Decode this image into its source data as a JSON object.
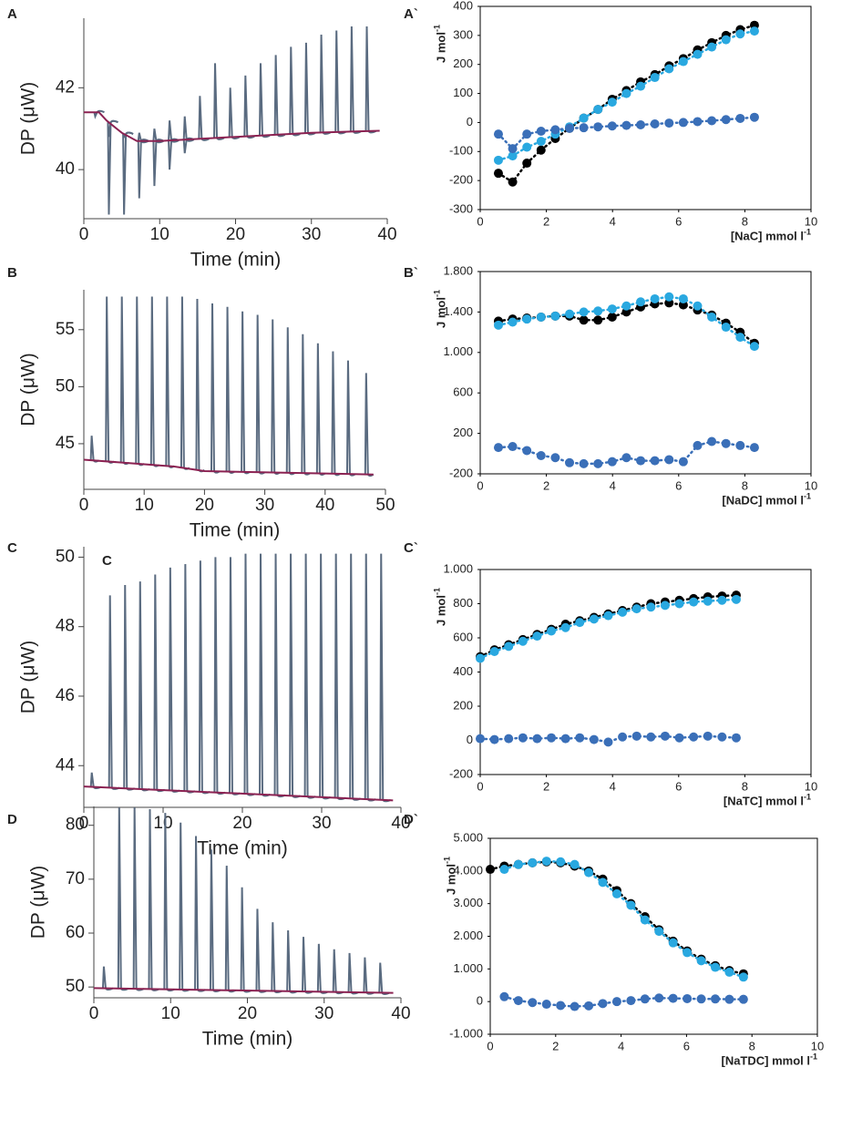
{
  "chart_data": [
    {
      "type": "thermogram",
      "panel": "A",
      "ylabel": "DP (μW)",
      "xlabel": "Time (min)",
      "xlim": [
        0,
        40
      ],
      "xticks": [
        0,
        10,
        20,
        30,
        40
      ],
      "ylim": [
        38.8,
        43.7
      ],
      "yticks": [
        40,
        42
      ],
      "baseline": {
        "color": "#8b2252",
        "x": [
          0,
          2,
          3,
          5,
          7,
          10,
          20,
          30,
          39
        ],
        "values": [
          41.4,
          41.4,
          41.2,
          40.9,
          40.7,
          40.7,
          40.8,
          40.9,
          40.95
        ]
      },
      "peaks": {
        "color": "#5a6b80",
        "x": [
          1.5,
          3.3,
          5.3,
          7.3,
          9.3,
          11.3,
          13.3,
          15.3,
          17.3,
          19.3,
          21.3,
          23.3,
          25.3,
          27.3,
          29.3,
          31.3,
          33.3,
          35.3,
          37.3
        ],
        "values": [
          41.3,
          40.8,
          40.8,
          40.9,
          41.0,
          41.2,
          41.3,
          41.8,
          42.6,
          42.0,
          42.3,
          42.6,
          42.8,
          43.0,
          43.1,
          43.3,
          43.4,
          43.5,
          43.5
        ]
      },
      "troughs": {
        "x": [
          3.3,
          5.3,
          7.3,
          9.3,
          11.3,
          13.3
        ],
        "values": [
          38.9,
          38.9,
          39.3,
          39.6,
          40.0,
          40.4
        ]
      }
    },
    {
      "type": "scatter",
      "panel": "A`",
      "ylabel": "J mol",
      "ylabel_sup": "-1",
      "xlabel": "[NaC] mmol l",
      "xlabel_sup": "-1",
      "xlim": [
        0,
        10
      ],
      "xticks": [
        0,
        2,
        4,
        6,
        8,
        10
      ],
      "ylim": [
        -300,
        400
      ],
      "yticks": [
        -300,
        -200,
        -100,
        0,
        100,
        200,
        300,
        400
      ],
      "x": [
        0.55,
        0.98,
        1.41,
        1.84,
        2.27,
        2.7,
        3.13,
        3.56,
        3.99,
        4.42,
        4.85,
        5.28,
        5.71,
        6.14,
        6.57,
        7.0,
        7.43,
        7.86,
        8.29
      ],
      "series": [
        {
          "color": "#000000",
          "values": [
            -175,
            -205,
            -140,
            -95,
            -55,
            -20,
            15,
            45,
            80,
            110,
            140,
            165,
            195,
            220,
            250,
            275,
            300,
            320,
            335
          ]
        },
        {
          "color": "#29a8e0",
          "values": [
            -130,
            -115,
            -85,
            -65,
            -40,
            -15,
            15,
            45,
            70,
            100,
            125,
            155,
            185,
            210,
            235,
            260,
            285,
            305,
            315
          ]
        },
        {
          "color": "#3a6fb8",
          "values": [
            -40,
            -90,
            -40,
            -30,
            -25,
            -20,
            -18,
            -15,
            -12,
            -10,
            -8,
            -5,
            -2,
            0,
            3,
            6,
            10,
            14,
            18
          ]
        }
      ]
    },
    {
      "type": "thermogram",
      "panel": "B",
      "ylabel": "DP (μW)",
      "xlabel": "Time (min)",
      "xlim": [
        0,
        50
      ],
      "xticks": [
        0,
        10,
        20,
        30,
        40,
        50
      ],
      "ylim": [
        41,
        58.5
      ],
      "yticks": [
        45,
        50,
        55
      ],
      "baseline": {
        "color": "#8b2252",
        "x": [
          0,
          15,
          20,
          48
        ],
        "values": [
          43.6,
          43.0,
          42.6,
          42.3
        ]
      },
      "peaks": {
        "color": "#5a6b80",
        "x": [
          1.3,
          3.8,
          6.3,
          8.8,
          11.3,
          13.8,
          16.3,
          18.8,
          21.3,
          23.8,
          26.3,
          28.8,
          31.3,
          33.8,
          36.3,
          38.8,
          41.3,
          43.8,
          46.8
        ],
        "values": [
          45.7,
          57.9,
          57.9,
          57.9,
          57.9,
          57.9,
          57.9,
          57.7,
          57.3,
          57.0,
          56.6,
          56.3,
          55.9,
          55.2,
          54.6,
          53.8,
          53.1,
          52.3,
          51.2
        ]
      }
    },
    {
      "type": "scatter",
      "panel": "B`",
      "ylabel": "J mol",
      "ylabel_sup": "-1",
      "xlabel": "[NaDC] mmol l",
      "xlabel_sup": "-1",
      "xlim": [
        0,
        10
      ],
      "xticks": [
        0,
        2,
        4,
        6,
        8,
        10
      ],
      "ylim": [
        -200,
        1800
      ],
      "yticks": [
        -200,
        200,
        600,
        {
          "value": 1000,
          "label": "1.000"
        },
        {
          "value": 1400,
          "label": "1.400"
        },
        {
          "value": 1800,
          "label": "1.800"
        }
      ],
      "x": [
        0.55,
        0.98,
        1.41,
        1.84,
        2.27,
        2.7,
        3.13,
        3.56,
        3.99,
        4.42,
        4.85,
        5.28,
        5.71,
        6.14,
        6.57,
        7.0,
        7.43,
        7.86,
        8.29
      ],
      "series": [
        {
          "color": "#000000",
          "values": [
            1310,
            1330,
            1340,
            1350,
            1360,
            1360,
            1320,
            1320,
            1350,
            1400,
            1450,
            1480,
            1490,
            1470,
            1420,
            1370,
            1290,
            1200,
            1090
          ]
        },
        {
          "color": "#29a8e0",
          "values": [
            1270,
            1300,
            1330,
            1350,
            1360,
            1380,
            1400,
            1410,
            1430,
            1460,
            1500,
            1530,
            1550,
            1530,
            1460,
            1350,
            1250,
            1150,
            1060
          ]
        },
        {
          "color": "#3a6fb8",
          "values": [
            60,
            70,
            30,
            -20,
            -40,
            -90,
            -100,
            -100,
            -80,
            -40,
            -70,
            -70,
            -60,
            -80,
            80,
            120,
            100,
            80,
            60
          ]
        }
      ]
    },
    {
      "type": "thermogram",
      "panel": "C",
      "annotation": "C",
      "ylabel": "DP (μW)",
      "xlabel": "Time (min)",
      "xlim": [
        0,
        40
      ],
      "xticks": [
        0,
        10,
        20,
        30,
        40
      ],
      "ylim": [
        42.8,
        50.3
      ],
      "yticks": [
        44,
        46,
        48,
        50
      ],
      "baseline": {
        "color": "#8b2252",
        "x": [
          0,
          39
        ],
        "values": [
          43.4,
          43.0
        ]
      },
      "peaks": {
        "color": "#5a6b80",
        "x": [
          1.0,
          3.3,
          5.2,
          7.1,
          9.0,
          10.9,
          12.8,
          14.7,
          16.6,
          18.5,
          20.4,
          22.3,
          24.2,
          26.1,
          28.0,
          29.9,
          31.8,
          33.7,
          35.6,
          37.5
        ],
        "values": [
          43.8,
          48.9,
          49.2,
          49.3,
          49.5,
          49.7,
          49.8,
          49.9,
          50.0,
          50.0,
          50.1,
          50.1,
          50.1,
          50.1,
          50.1,
          50.1,
          50.1,
          50.1,
          50.1,
          50.1
        ]
      }
    },
    {
      "type": "scatter",
      "panel": "C`",
      "ylabel": "J mol",
      "ylabel_sup": "-1",
      "xlabel": "[NaTC] mmol l",
      "xlabel_sup": "-1",
      "xlim": [
        0,
        10
      ],
      "xticks": [
        0,
        2,
        4,
        6,
        8,
        10
      ],
      "ylim": [
        -200,
        1000
      ],
      "yticks": [
        -200,
        0,
        200,
        400,
        600,
        800,
        {
          "value": 1000,
          "label": "1.000"
        }
      ],
      "x": [
        0,
        0.43,
        0.86,
        1.29,
        1.72,
        2.15,
        2.58,
        3.01,
        3.44,
        3.87,
        4.3,
        4.73,
        5.16,
        5.59,
        6.02,
        6.45,
        6.88,
        7.31,
        7.74
      ],
      "series": [
        {
          "color": "#000000",
          "values": [
            490,
            530,
            560,
            590,
            620,
            650,
            680,
            700,
            720,
            740,
            760,
            780,
            800,
            810,
            820,
            830,
            840,
            845,
            850
          ]
        },
        {
          "color": "#29a8e0",
          "values": [
            480,
            520,
            550,
            580,
            610,
            640,
            660,
            690,
            710,
            730,
            750,
            770,
            780,
            790,
            800,
            810,
            815,
            820,
            825
          ]
        },
        {
          "color": "#3a6fb8",
          "values": [
            10,
            5,
            10,
            15,
            10,
            15,
            10,
            15,
            5,
            -10,
            20,
            25,
            20,
            25,
            15,
            20,
            25,
            20,
            15
          ]
        }
      ]
    },
    {
      "type": "thermogram",
      "panel": "D",
      "ylabel": "DP (μW)",
      "xlabel": "Time (min)",
      "xlim": [
        0,
        40
      ],
      "xticks": [
        0,
        10,
        20,
        30,
        40
      ],
      "ylim": [
        48,
        83.5
      ],
      "yticks": [
        50,
        60,
        70,
        80
      ],
      "baseline": {
        "color": "#8b2252",
        "x": [
          0,
          39
        ],
        "values": [
          49.8,
          48.9
        ]
      },
      "peaks": {
        "color": "#5a6b80",
        "x": [
          1.3,
          3.3,
          5.3,
          7.3,
          9.3,
          11.3,
          13.3,
          15.3,
          17.3,
          19.3,
          21.3,
          23.3,
          25.3,
          27.3,
          29.3,
          31.3,
          33.3,
          35.3,
          37.3
        ],
        "values": [
          53.8,
          83.3,
          83.3,
          83.0,
          82.3,
          80.5,
          78.0,
          75.5,
          72.5,
          68.5,
          64.5,
          62.0,
          60.5,
          59.3,
          58.0,
          57.0,
          56.3,
          55.5,
          54.5
        ]
      }
    },
    {
      "type": "scatter",
      "panel": "D`",
      "ylabel": "J mol",
      "ylabel_sup": "-1",
      "xlabel": "[NaTDC] mmol l",
      "xlabel_sup": "-1",
      "xlim": [
        0,
        10
      ],
      "xticks": [
        0,
        2,
        4,
        6,
        8,
        10
      ],
      "ylim": [
        -1000,
        5000
      ],
      "yticks": [
        {
          "value": -1000,
          "label": "-1.000"
        },
        0,
        {
          "value": 1000,
          "label": "1.000"
        },
        {
          "value": 2000,
          "label": "2.000"
        },
        {
          "value": 3000,
          "label": "3.000"
        },
        {
          "value": 4000,
          "label": "4.000"
        },
        {
          "value": 5000,
          "label": "5.000"
        }
      ],
      "x": [
        0,
        0.43,
        0.86,
        1.29,
        1.72,
        2.15,
        2.58,
        3.01,
        3.44,
        3.87,
        4.3,
        4.73,
        5.16,
        5.59,
        6.02,
        6.45,
        6.88,
        7.31,
        7.74
      ],
      "series": [
        {
          "color": "#000000",
          "values": [
            4050,
            4150,
            4200,
            4250,
            4280,
            4250,
            4150,
            4000,
            3750,
            3400,
            3000,
            2600,
            2200,
            1850,
            1550,
            1300,
            1100,
            950,
            850
          ]
        },
        {
          "color": "#29a8e0",
          "values": [
            null,
            4050,
            4200,
            4250,
            4300,
            4280,
            4200,
            3950,
            3650,
            3300,
            2950,
            2500,
            2150,
            1800,
            1500,
            1250,
            1050,
            900,
            750
          ]
        },
        {
          "color": "#3a6fb8",
          "values": [
            null,
            150,
            30,
            -30,
            -80,
            -120,
            -150,
            -130,
            -60,
            0,
            30,
            80,
            110,
            100,
            90,
            80,
            80,
            70,
            70
          ]
        }
      ]
    }
  ]
}
